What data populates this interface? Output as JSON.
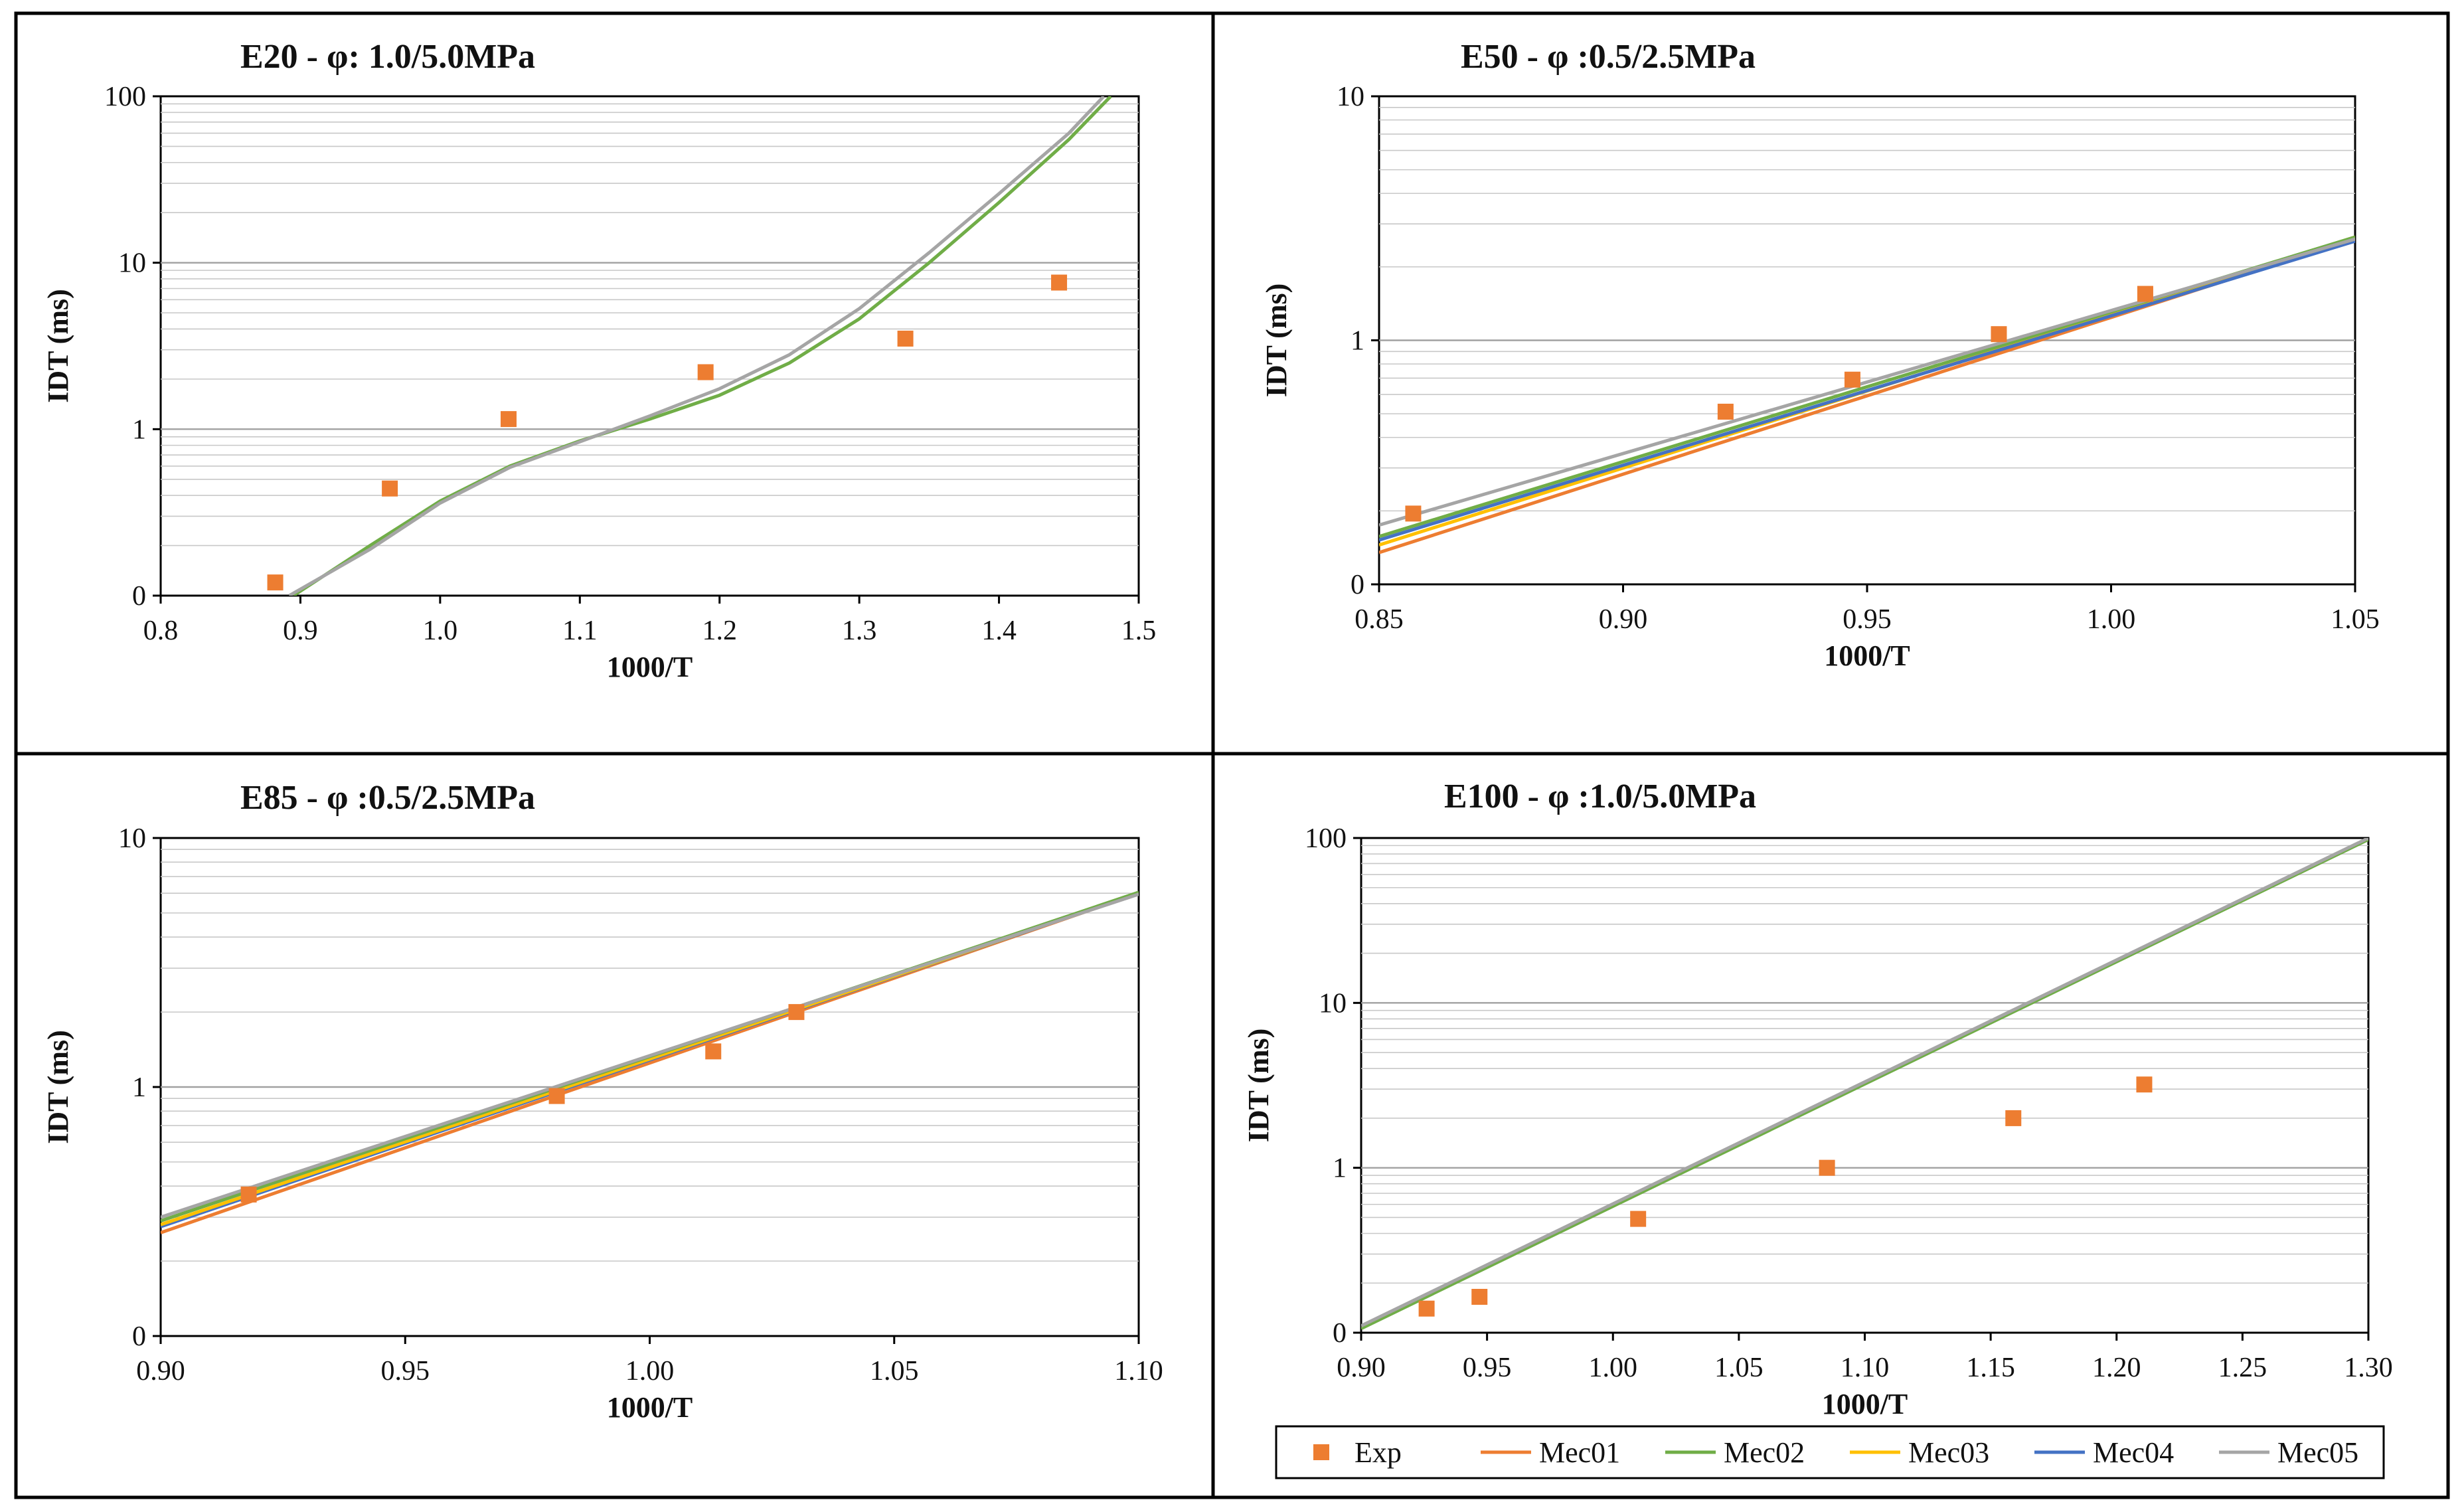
{
  "colors": {
    "Exp": "#ED7D31",
    "Mec01": "#ED7D31",
    "Mec02": "#70AD47",
    "Mec03": "#FFC000",
    "Mec04": "#4472C4",
    "Mec05": "#A5A5A5"
  },
  "legend": {
    "items": [
      "Exp",
      "Mec01",
      "Mec02",
      "Mec03",
      "Mec04",
      "Mec05"
    ]
  },
  "chart_data": [
    {
      "type": "scatter",
      "title": "E20 - φ: 1.0/5.0MPa",
      "xlabel": "1000/T",
      "ylabel": "IDT (ms)",
      "xlim": [
        0.8,
        1.5
      ],
      "xticks": [
        0.8,
        0.9,
        1.0,
        1.1,
        1.2,
        1.3,
        1.4,
        1.5
      ],
      "xtick_labels": [
        "0.8",
        "0.9",
        "1.0",
        "1.1",
        "1.2",
        "1.3",
        "1.4",
        "1.5"
      ],
      "yscale": "log",
      "ylim": [
        0.1,
        100
      ],
      "yticks": [
        0.1,
        1,
        10,
        100
      ],
      "ytick_labels": [
        "0",
        "1",
        "10",
        "100"
      ],
      "exp": {
        "x": [
          0.882,
          0.964,
          1.049,
          1.19,
          1.333,
          1.443
        ],
        "y": [
          0.12,
          0.44,
          1.15,
          2.2,
          3.5,
          7.6
        ]
      },
      "series": [
        {
          "name": "Mec02",
          "x": [
            0.895,
            0.95,
            1.0,
            1.05,
            1.1,
            1.15,
            1.2,
            1.25,
            1.3,
            1.35,
            1.4,
            1.45,
            1.48
          ],
          "y": [
            0.1,
            0.2,
            0.37,
            0.6,
            0.85,
            1.15,
            1.6,
            2.5,
            4.6,
            10,
            23,
            55,
            100
          ]
        },
        {
          "name": "Mec05",
          "x": [
            0.892,
            0.95,
            1.0,
            1.05,
            1.1,
            1.15,
            1.2,
            1.25,
            1.3,
            1.35,
            1.4,
            1.45,
            1.475
          ],
          "y": [
            0.1,
            0.19,
            0.36,
            0.59,
            0.84,
            1.2,
            1.75,
            2.8,
            5.3,
            11.5,
            26,
            60,
            100
          ]
        }
      ]
    },
    {
      "type": "scatter",
      "title": "E50 - φ :0.5/2.5MPa",
      "xlabel": "1000/T",
      "ylabel": "IDT (ms)",
      "xlim": [
        0.85,
        1.05
      ],
      "xticks": [
        0.85,
        0.9,
        0.95,
        1.0,
        1.05
      ],
      "xtick_labels": [
        "0.85",
        "0.90",
        "0.95",
        "1.00",
        "1.05"
      ],
      "yscale": "log",
      "ylim": [
        0.1,
        10
      ],
      "yticks": [
        0.1,
        1,
        10
      ],
      "ytick_labels": [
        "0",
        "1",
        "10"
      ],
      "exp": {
        "x": [
          0.857,
          0.921,
          0.947,
          0.977,
          1.007
        ],
        "y": [
          0.195,
          0.51,
          0.69,
          1.06,
          1.55
        ]
      },
      "series": [
        {
          "name": "Mec01",
          "x": [
            0.85,
            1.05
          ],
          "y": [
            0.135,
            2.6
          ]
        },
        {
          "name": "Mec03",
          "x": [
            0.85,
            1.05
          ],
          "y": [
            0.145,
            2.65
          ]
        },
        {
          "name": "Mec04",
          "x": [
            0.85,
            1.05
          ],
          "y": [
            0.152,
            2.55
          ]
        },
        {
          "name": "Mec02",
          "x": [
            0.85,
            1.05
          ],
          "y": [
            0.157,
            2.65
          ]
        },
        {
          "name": "Mec05",
          "x": [
            0.85,
            1.05
          ],
          "y": [
            0.175,
            2.6
          ]
        }
      ]
    },
    {
      "type": "scatter",
      "title": "E85 - φ :0.5/2.5MPa",
      "xlabel": "1000/T",
      "ylabel": "IDT (ms)",
      "xlim": [
        0.9,
        1.1
      ],
      "xticks": [
        0.9,
        0.95,
        1.0,
        1.05,
        1.1
      ],
      "xtick_labels": [
        "0.90",
        "0.95",
        "1.00",
        "1.05",
        "1.10"
      ],
      "yscale": "log",
      "ylim": [
        0.1,
        10
      ],
      "yticks": [
        0.1,
        1,
        10
      ],
      "ytick_labels": [
        "0",
        "1",
        "10"
      ],
      "exp": {
        "x": [
          0.918,
          0.981,
          1.013,
          1.03
        ],
        "y": [
          0.37,
          0.92,
          1.39,
          2.0
        ]
      },
      "series": [
        {
          "name": "Mec01",
          "x": [
            0.9,
            1.1
          ],
          "y": [
            0.26,
            6.0
          ]
        },
        {
          "name": "Mec04",
          "x": [
            0.9,
            1.1
          ],
          "y": [
            0.275,
            6.0
          ]
        },
        {
          "name": "Mec03",
          "x": [
            0.9,
            1.1
          ],
          "y": [
            0.28,
            6.0
          ]
        },
        {
          "name": "Mec02",
          "x": [
            0.9,
            1.1
          ],
          "y": [
            0.29,
            6.05
          ]
        },
        {
          "name": "Mec05",
          "x": [
            0.9,
            1.1
          ],
          "y": [
            0.3,
            5.95
          ]
        }
      ]
    },
    {
      "type": "scatter",
      "title": "E100 - φ :1.0/5.0MPa",
      "xlabel": "1000/T",
      "ylabel": "IDT (ms)",
      "xlim": [
        0.9,
        1.3
      ],
      "xticks": [
        0.9,
        0.95,
        1.0,
        1.05,
        1.1,
        1.15,
        1.2,
        1.25,
        1.3
      ],
      "xtick_labels": [
        "0.90",
        "0.95",
        "1.00",
        "1.05",
        "1.10",
        "1.15",
        "1.20",
        "1.25",
        "1.30"
      ],
      "yscale": "log",
      "ylim": [
        0.1,
        100
      ],
      "yticks": [
        0.1,
        1,
        10,
        100
      ],
      "ytick_labels": [
        "0",
        "1",
        "10",
        "100"
      ],
      "exp": {
        "x": [
          0.926,
          0.947,
          1.01,
          1.085,
          1.159,
          1.211
        ],
        "y": [
          0.14,
          0.165,
          0.49,
          1.0,
          2.0,
          3.2
        ]
      },
      "series": [
        {
          "name": "Mec02",
          "x": [
            0.9,
            1.3
          ],
          "y": [
            0.106,
            98
          ]
        },
        {
          "name": "Mec05",
          "x": [
            0.9,
            1.3
          ],
          "y": [
            0.11,
            100
          ]
        }
      ]
    }
  ]
}
